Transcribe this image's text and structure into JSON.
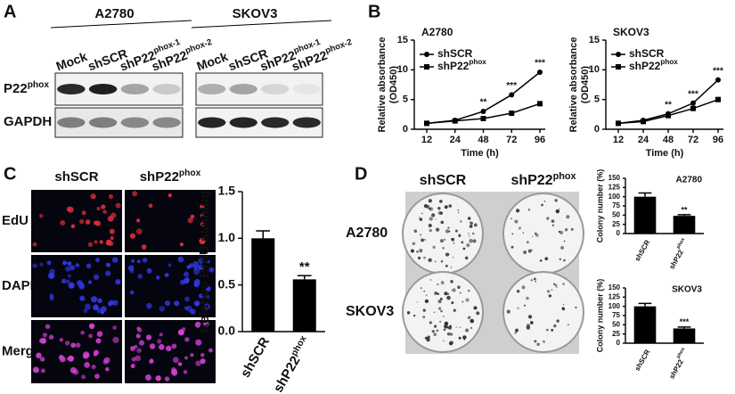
{
  "panel_labels": [
    "A",
    "B",
    "C",
    "D"
  ],
  "blot": {
    "cell_lines": [
      "A2780",
      "SKOV3"
    ],
    "lanes": [
      "Mock",
      "shSCR",
      {
        "text": "shP22",
        "sup": "phox-1"
      },
      {
        "text": "shP22",
        "sup": "phox-2"
      }
    ],
    "rows": [
      {
        "text": "P22",
        "sup": "phox"
      },
      "GAPDH"
    ]
  },
  "microscopy": {
    "columns": [
      "shSCR",
      {
        "text": "shP22",
        "sup": "phox"
      }
    ],
    "rows": [
      "EdU",
      "DAPI",
      "Merge"
    ]
  },
  "colony": {
    "columns": [
      "shSCR",
      {
        "text": "shP22",
        "sup": "phox"
      }
    ],
    "rows": [
      "A2780",
      "SKOV3"
    ]
  },
  "chart_data": [
    {
      "type": "line",
      "title": "A2780",
      "ylabel": [
        "Relative absorbance",
        "(OD450)"
      ],
      "xlabel": "Time (h)",
      "categories": [
        "12",
        "24",
        "48",
        "72",
        "96"
      ],
      "ylim": [
        0,
        15
      ],
      "yticks": [
        0,
        5,
        10,
        15
      ],
      "series": [
        {
          "name": "shSCR",
          "color": "#000000",
          "marker": "circle",
          "values": [
            1.0,
            1.5,
            3.0,
            5.8,
            9.6
          ]
        },
        {
          "name": {
            "text": "shP22",
            "sup": "phox"
          },
          "color": "#000000",
          "marker": "square",
          "values": [
            1.0,
            1.4,
            1.8,
            2.7,
            4.3
          ]
        }
      ],
      "significance": [
        null,
        null,
        "**",
        "***",
        "***"
      ]
    },
    {
      "type": "line",
      "title": "SKOV3",
      "ylabel": [
        "Relative absorbance",
        "(OD450)"
      ],
      "xlabel": "Time (h)",
      "categories": [
        "12",
        "24",
        "48",
        "72",
        "96"
      ],
      "ylim": [
        0,
        15
      ],
      "yticks": [
        0,
        5,
        10,
        15
      ],
      "series": [
        {
          "name": "shSCR",
          "color": "#000000",
          "marker": "circle",
          "values": [
            1.0,
            1.5,
            2.6,
            4.4,
            8.3
          ]
        },
        {
          "name": {
            "text": "shP22",
            "sup": "phox"
          },
          "color": "#000000",
          "marker": "square",
          "values": [
            1.0,
            1.3,
            2.3,
            3.5,
            5.0
          ]
        }
      ],
      "significance": [
        null,
        null,
        "**",
        "***",
        "***"
      ]
    },
    {
      "type": "bar",
      "ylabel": "Relative BrdU staining",
      "categories": [
        "shSCR",
        {
          "text": "shP22",
          "sup": "phox"
        }
      ],
      "values": [
        1.0,
        0.56
      ],
      "errors": [
        0.08,
        0.04
      ],
      "color": "#000000",
      "ylim": [
        0,
        1.5
      ],
      "yticks": [
        {
          "value": 0,
          "label": "0.0"
        },
        0.5,
        {
          "value": 1,
          "label": "1.0"
        },
        1.5
      ],
      "significance": [
        null,
        "**"
      ]
    },
    {
      "type": "bar",
      "title": "A2780",
      "ylabel": "Colony number (%)",
      "categories": [
        "shSCR",
        {
          "text": "shP22",
          "sup": "phox"
        }
      ],
      "values": [
        100,
        48
      ],
      "errors": [
        10,
        3
      ],
      "color": "#000000",
      "ylim": [
        0,
        150
      ],
      "yticks": [
        0,
        25,
        50,
        75,
        100,
        125,
        150
      ],
      "significance": [
        null,
        "**"
      ]
    },
    {
      "type": "bar",
      "title": "SKOV3",
      "ylabel": "Colony number (%)",
      "categories": [
        "shSCR",
        {
          "text": "shP22",
          "sup": "phox"
        }
      ],
      "values": [
        100,
        40
      ],
      "errors": [
        8,
        4
      ],
      "color": "#000000",
      "ylim": [
        0,
        150
      ],
      "yticks": [
        0,
        25,
        50,
        75,
        100,
        125,
        150
      ],
      "significance": [
        null,
        "***"
      ]
    }
  ]
}
